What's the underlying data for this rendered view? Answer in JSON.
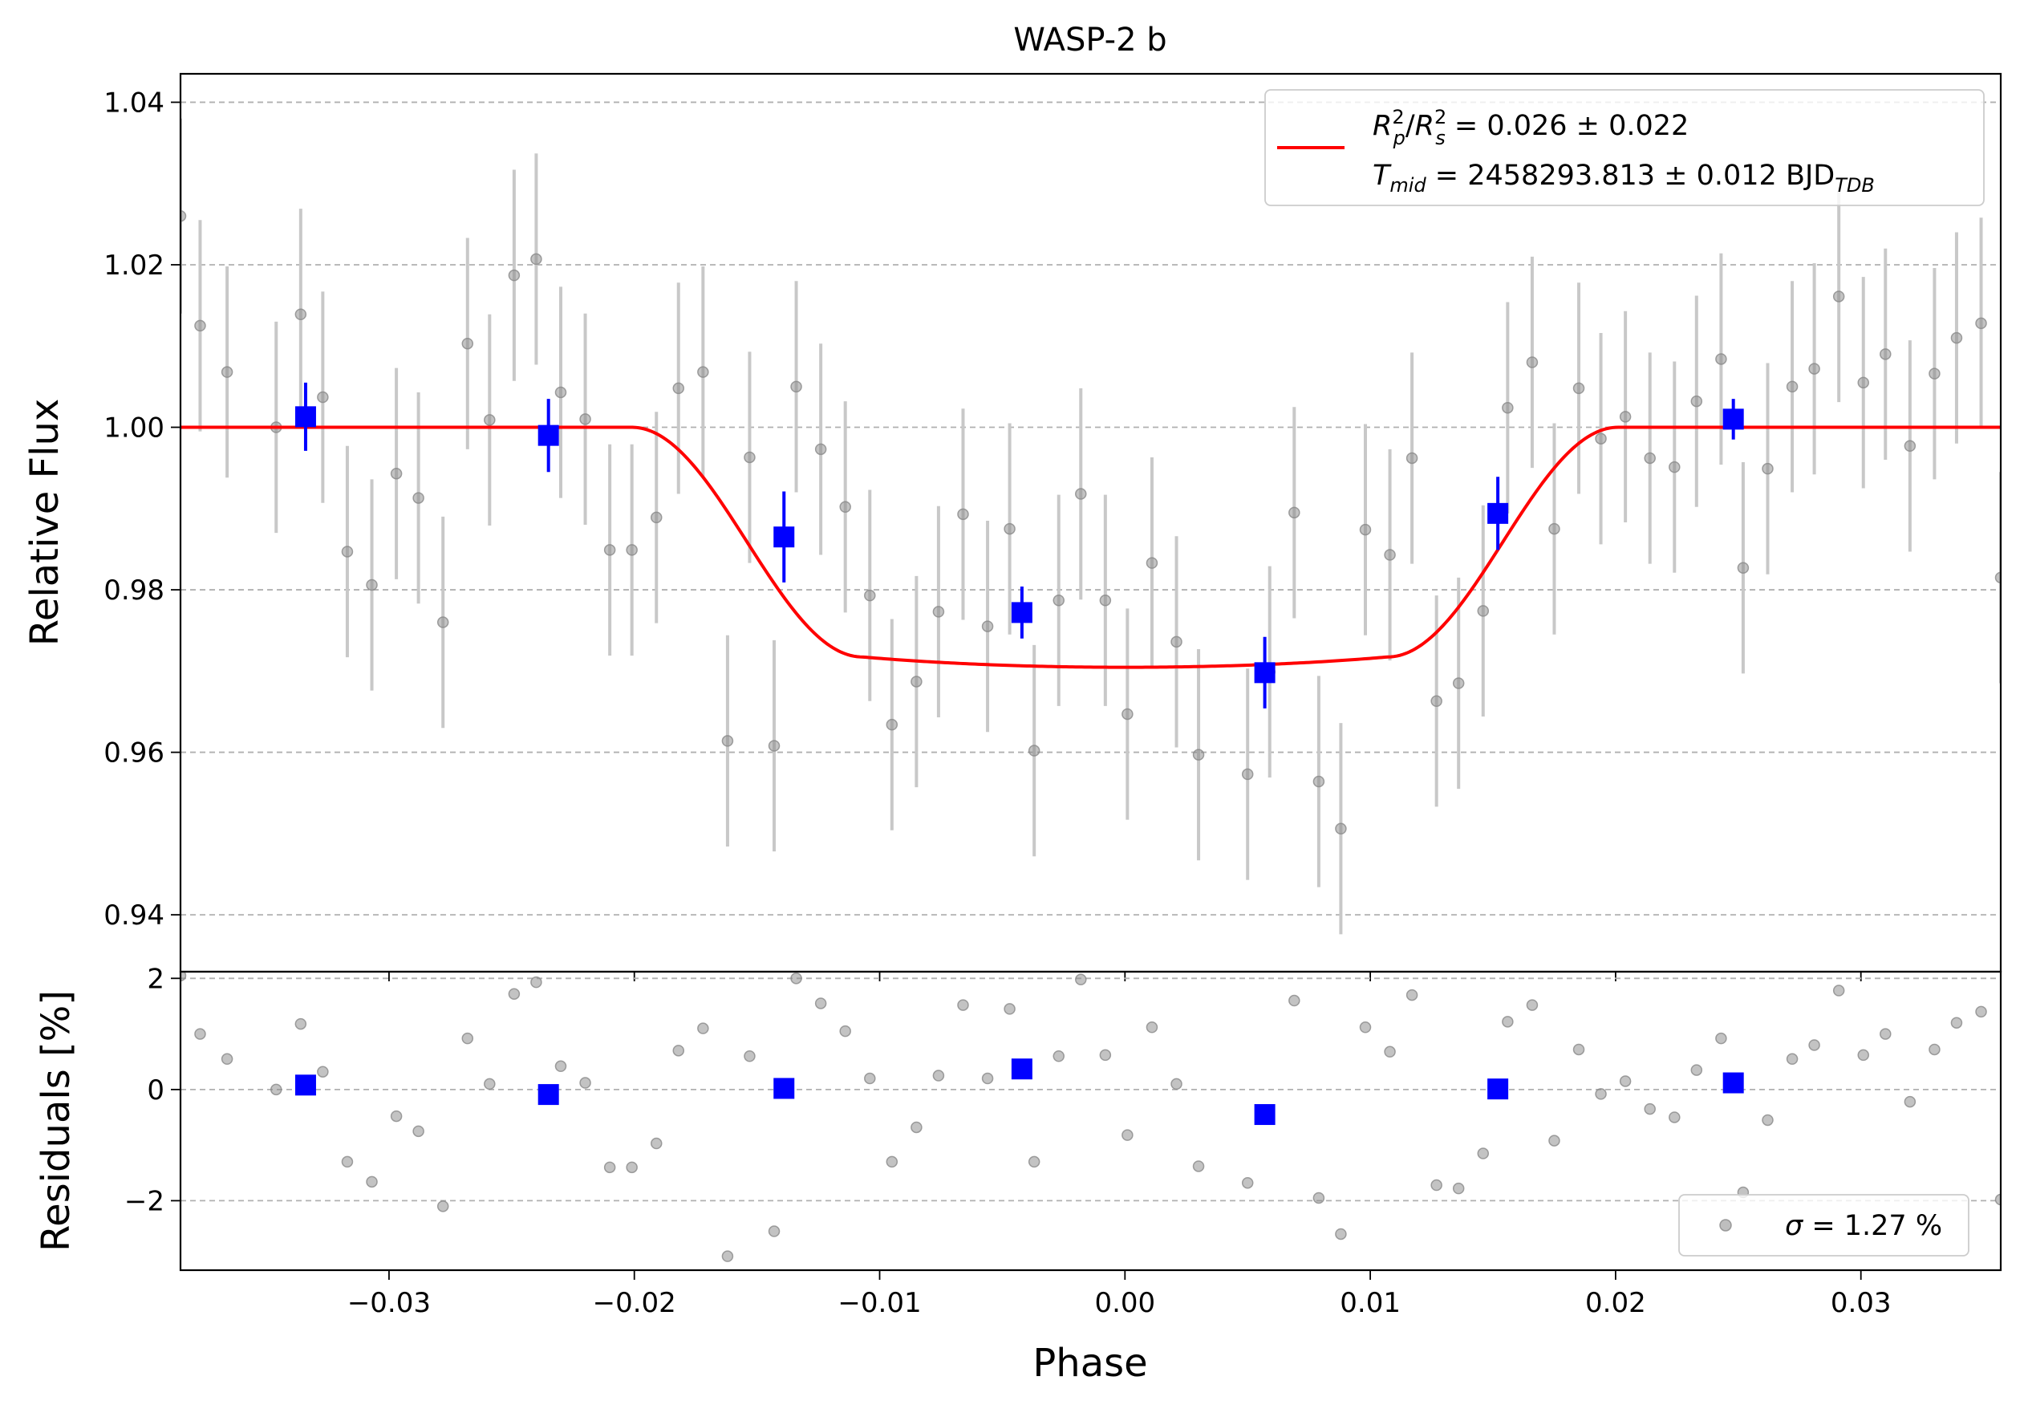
{
  "chart_data": [
    {
      "type": "scatter",
      "title": "WASP-2 b",
      "xlabel": "",
      "ylabel": "Relative Flux",
      "xlim": [
        -0.0385,
        0.0357
      ],
      "ylim": [
        0.933,
        1.0435
      ],
      "grid": "horizontal-dashed",
      "yticks": [
        {
          "value": 1.04,
          "label": "1.04"
        },
        {
          "value": 1.02,
          "label": "1.02"
        },
        {
          "value": 1.0,
          "label": "1.00"
        },
        {
          "value": 0.98,
          "label": "0.98"
        },
        {
          "value": 0.96,
          "label": "0.96"
        },
        {
          "value": 0.94,
          "label": "0.94"
        }
      ],
      "legend": {
        "placement": "top-right",
        "line1": "R_p²/R_s² = 0.026 ± 0.022",
        "line2": "T_mid = 2458293.813 ± 0.012 BJD_TDB",
        "line1_parts": {
          "r": "R",
          "p": "p",
          "s": "s",
          "sup": "2",
          "value": " = 0.026 ± 0.022"
        },
        "line2_parts": {
          "t": "T",
          "mid": "mid",
          "value": " = 2458293.813 ± 0.012 BJD",
          "tdb": "TDB"
        }
      },
      "colors": {
        "raw": "#888888",
        "raw_err": "#c8c8c8",
        "binned": "#0000ff",
        "model": "#ff0000"
      },
      "raw_points": [
        [
          -0.0385,
          1.026,
          0.012
        ],
        [
          -0.0377,
          1.0125,
          0.013
        ],
        [
          -0.0366,
          1.0068,
          0.013
        ],
        [
          -0.0346,
          1.0,
          0.013
        ],
        [
          -0.0336,
          1.0139,
          0.013
        ],
        [
          -0.0327,
          1.0037,
          0.013
        ],
        [
          -0.0317,
          0.9847,
          0.013
        ],
        [
          -0.0307,
          0.9806,
          0.013
        ],
        [
          -0.0297,
          0.9943,
          0.013
        ],
        [
          -0.0288,
          0.9913,
          0.013
        ],
        [
          -0.0278,
          0.976,
          0.013
        ],
        [
          -0.0268,
          1.0103,
          0.013
        ],
        [
          -0.0259,
          1.0009,
          0.013
        ],
        [
          -0.0249,
          1.0187,
          0.013
        ],
        [
          -0.024,
          1.0207,
          0.013
        ],
        [
          -0.023,
          1.0043,
          0.013
        ],
        [
          -0.022,
          1.001,
          0.013
        ],
        [
          -0.021,
          0.9849,
          0.013
        ],
        [
          -0.0201,
          0.9849,
          0.013
        ],
        [
          -0.0191,
          0.9889,
          0.013
        ],
        [
          -0.0182,
          1.0048,
          0.013
        ],
        [
          -0.0172,
          1.0068,
          0.013
        ],
        [
          -0.0162,
          0.9614,
          0.013
        ],
        [
          -0.0153,
          0.9963,
          0.013
        ],
        [
          -0.0143,
          0.9608,
          0.013
        ],
        [
          -0.0134,
          1.005,
          0.013
        ],
        [
          -0.0124,
          0.9973,
          0.013
        ],
        [
          -0.0114,
          0.9902,
          0.013
        ],
        [
          -0.0104,
          0.9793,
          0.013
        ],
        [
          -0.0095,
          0.9634,
          0.013
        ],
        [
          -0.0085,
          0.9687,
          0.013
        ],
        [
          -0.0076,
          0.9773,
          0.013
        ],
        [
          -0.0066,
          0.9893,
          0.013
        ],
        [
          -0.0056,
          0.9755,
          0.013
        ],
        [
          -0.0047,
          0.9875,
          0.013
        ],
        [
          -0.0037,
          0.9602,
          0.013
        ],
        [
          -0.0027,
          0.9787,
          0.013
        ],
        [
          -0.0018,
          0.9918,
          0.013
        ],
        [
          -0.0008,
          0.9787,
          0.013
        ],
        [
          0.0001,
          0.9647,
          0.013
        ],
        [
          0.0011,
          0.9833,
          0.013
        ],
        [
          0.0021,
          0.9736,
          0.013
        ],
        [
          0.003,
          0.9597,
          0.013
        ],
        [
          0.005,
          0.9573,
          0.013
        ],
        [
          0.0059,
          0.9699,
          0.013
        ],
        [
          0.0069,
          0.9895,
          0.013
        ],
        [
          0.0079,
          0.9564,
          0.013
        ],
        [
          0.0088,
          0.9506,
          0.013
        ],
        [
          0.0098,
          0.9874,
          0.013
        ],
        [
          0.0108,
          0.9843,
          0.013
        ],
        [
          0.0117,
          0.9962,
          0.013
        ],
        [
          0.0127,
          0.9663,
          0.013
        ],
        [
          0.0136,
          0.9685,
          0.013
        ],
        [
          0.0146,
          0.9774,
          0.013
        ],
        [
          0.0156,
          1.0024,
          0.013
        ],
        [
          0.0166,
          1.008,
          0.013
        ],
        [
          0.0175,
          0.9875,
          0.013
        ],
        [
          0.0185,
          1.0048,
          0.013
        ],
        [
          0.0194,
          0.9986,
          0.013
        ],
        [
          0.0204,
          1.0013,
          0.013
        ],
        [
          0.0214,
          0.9962,
          0.013
        ],
        [
          0.0224,
          0.9951,
          0.013
        ],
        [
          0.0233,
          1.0032,
          0.013
        ],
        [
          0.0243,
          1.0084,
          0.013
        ],
        [
          0.0252,
          0.9827,
          0.013
        ],
        [
          0.0262,
          0.9949,
          0.013
        ],
        [
          0.0272,
          1.005,
          0.013
        ],
        [
          0.0281,
          1.0072,
          0.013
        ],
        [
          0.0291,
          1.0161,
          0.013
        ],
        [
          0.0301,
          1.0055,
          0.013
        ],
        [
          0.031,
          1.009,
          0.013
        ],
        [
          0.032,
          0.9977,
          0.013
        ],
        [
          0.033,
          1.0066,
          0.013
        ],
        [
          0.0339,
          1.011,
          0.013
        ],
        [
          0.0349,
          1.0128,
          0.013
        ],
        [
          0.0357,
          0.9815,
          0.013
        ]
      ],
      "binned_points": [
        [
          -0.0334,
          1.0013,
          0.0042
        ],
        [
          -0.0235,
          0.999,
          0.0045
        ],
        [
          -0.0139,
          0.9865,
          0.0056
        ],
        [
          -0.0042,
          0.9772,
          0.0032
        ],
        [
          0.0057,
          0.9698,
          0.0044
        ],
        [
          0.0152,
          0.9894,
          0.0045
        ],
        [
          0.0248,
          1.001,
          0.0025
        ]
      ],
      "model": {
        "depth": 0.026,
        "t14": 0.0402,
        "t23": 0.0214,
        "limb_u": 0.28
      }
    },
    {
      "type": "scatter",
      "title": "",
      "xlabel": "Phase",
      "ylabel": "Residuals [%]",
      "xlim": [
        -0.0385,
        0.0357
      ],
      "ylim": [
        -3.25,
        2.12
      ],
      "grid": "horizontal-dashed",
      "xticks": [
        {
          "value": -0.03,
          "label": "−0.03"
        },
        {
          "value": -0.02,
          "label": "−0.02"
        },
        {
          "value": -0.01,
          "label": "−0.01"
        },
        {
          "value": 0.0,
          "label": "0.00"
        },
        {
          "value": 0.01,
          "label": "0.01"
        },
        {
          "value": 0.02,
          "label": "0.02"
        },
        {
          "value": 0.03,
          "label": "0.03"
        }
      ],
      "yticks": [
        {
          "value": 2,
          "label": "2"
        },
        {
          "value": 0,
          "label": "0"
        },
        {
          "value": -2,
          "label": "−2"
        }
      ],
      "legend": {
        "placement": "bottom-right",
        "label": "σ = 1.27 %",
        "sigma": "σ",
        "value": " = 1.27 %"
      },
      "raw_points": [
        [
          -0.0385,
          2.05
        ],
        [
          -0.0377,
          1.0
        ],
        [
          -0.0366,
          0.55
        ],
        [
          -0.0346,
          0.0
        ],
        [
          -0.0336,
          1.18
        ],
        [
          -0.0327,
          0.32
        ],
        [
          -0.0317,
          -1.3
        ],
        [
          -0.0307,
          -1.66
        ],
        [
          -0.0297,
          -0.48
        ],
        [
          -0.0288,
          -0.75
        ],
        [
          -0.0278,
          -2.1
        ],
        [
          -0.0268,
          0.92
        ],
        [
          -0.0259,
          0.1
        ],
        [
          -0.0249,
          1.72
        ],
        [
          -0.024,
          1.93
        ],
        [
          -0.023,
          0.42
        ],
        [
          -0.022,
          0.12
        ],
        [
          -0.021,
          -1.4
        ],
        [
          -0.0201,
          -1.4
        ],
        [
          -0.0191,
          -0.97
        ],
        [
          -0.0182,
          0.7
        ],
        [
          -0.0172,
          1.1
        ],
        [
          -0.0162,
          -3.0
        ],
        [
          -0.0153,
          0.6
        ],
        [
          -0.0143,
          -2.55
        ],
        [
          -0.0134,
          2.0
        ],
        [
          -0.0124,
          1.55
        ],
        [
          -0.0114,
          1.05
        ],
        [
          -0.0104,
          0.2
        ],
        [
          -0.0095,
          -1.3
        ],
        [
          -0.0085,
          -0.68
        ],
        [
          -0.0076,
          0.25
        ],
        [
          -0.0066,
          1.52
        ],
        [
          -0.0056,
          0.2
        ],
        [
          -0.0047,
          1.45
        ],
        [
          -0.0037,
          -1.3
        ],
        [
          -0.0027,
          0.6
        ],
        [
          -0.0018,
          1.98
        ],
        [
          -0.0008,
          0.62
        ],
        [
          0.0001,
          -0.82
        ],
        [
          0.0011,
          1.12
        ],
        [
          0.0021,
          0.1
        ],
        [
          0.003,
          -1.38
        ],
        [
          0.005,
          -1.68
        ],
        [
          0.0069,
          1.6
        ],
        [
          0.0079,
          -1.95
        ],
        [
          0.0088,
          -2.6
        ],
        [
          0.0098,
          1.12
        ],
        [
          0.0108,
          0.68
        ],
        [
          0.0117,
          1.7
        ],
        [
          0.0127,
          -1.72
        ],
        [
          0.0136,
          -1.78
        ],
        [
          0.0146,
          -1.15
        ],
        [
          0.0156,
          1.22
        ],
        [
          0.0166,
          1.52
        ],
        [
          0.0175,
          -0.92
        ],
        [
          0.0185,
          0.72
        ],
        [
          0.0194,
          -0.08
        ],
        [
          0.0204,
          0.15
        ],
        [
          0.0214,
          -0.35
        ],
        [
          0.0224,
          -0.5
        ],
        [
          0.0233,
          0.35
        ],
        [
          0.0243,
          0.92
        ],
        [
          0.0252,
          -1.85
        ],
        [
          0.0262,
          -0.55
        ],
        [
          0.0272,
          0.55
        ],
        [
          0.0281,
          0.8
        ],
        [
          0.0291,
          1.78
        ],
        [
          0.0301,
          0.62
        ],
        [
          0.031,
          1.0
        ],
        [
          0.032,
          -0.22
        ],
        [
          0.033,
          0.72
        ],
        [
          0.0339,
          1.2
        ],
        [
          0.0349,
          1.4
        ],
        [
          0.0357,
          -1.98
        ]
      ],
      "binned_points": [
        [
          -0.0334,
          0.08
        ],
        [
          -0.0235,
          -0.09
        ],
        [
          -0.0139,
          0.02
        ],
        [
          -0.0042,
          0.37
        ],
        [
          0.0057,
          -0.45
        ],
        [
          0.0152,
          0.01
        ],
        [
          0.0248,
          0.12
        ]
      ]
    }
  ]
}
